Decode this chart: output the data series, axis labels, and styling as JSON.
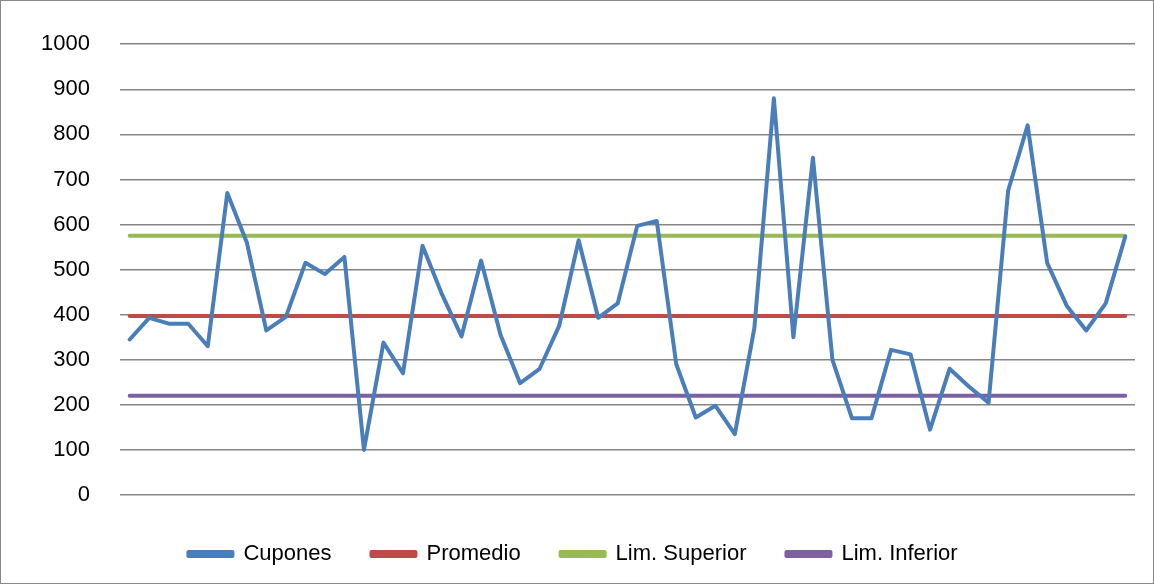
{
  "chart_data": {
    "type": "line",
    "categories": [
      null,
      null,
      null,
      null,
      null,
      null,
      null,
      null,
      null,
      null,
      null,
      null,
      null,
      null,
      null,
      null,
      null,
      null,
      null,
      null,
      null,
      null,
      null,
      null,
      null,
      null,
      null,
      null,
      null,
      null,
      null,
      null,
      null,
      null,
      null,
      null,
      null,
      null,
      null,
      null,
      null,
      null,
      null,
      null,
      null,
      null,
      null,
      null,
      null,
      null,
      null,
      null
    ],
    "series": [
      {
        "name": "Cupones",
        "color": "#4a7ebb",
        "values": [
          345,
          393,
          380,
          380,
          330,
          670,
          560,
          365,
          395,
          515,
          490,
          528,
          100,
          338,
          270,
          553,
          445,
          352,
          520,
          355,
          248,
          280,
          375,
          565,
          393,
          425,
          597,
          608,
          290,
          172,
          198,
          135,
          370,
          880,
          350,
          748,
          300,
          170,
          170,
          322,
          312,
          145,
          280,
          240,
          205,
          675,
          820,
          515,
          420,
          365,
          425,
          573
        ]
      },
      {
        "name": "Promedio",
        "color": "#be4b48",
        "values": [
          397,
          397,
          397,
          397,
          397,
          397,
          397,
          397,
          397,
          397,
          397,
          397,
          397,
          397,
          397,
          397,
          397,
          397,
          397,
          397,
          397,
          397,
          397,
          397,
          397,
          397,
          397,
          397,
          397,
          397,
          397,
          397,
          397,
          397,
          397,
          397,
          397,
          397,
          397,
          397,
          397,
          397,
          397,
          397,
          397,
          397,
          397,
          397,
          397,
          397,
          397,
          397
        ]
      },
      {
        "name": "Lim. Superior",
        "color": "#98b954",
        "values": [
          575,
          575,
          575,
          575,
          575,
          575,
          575,
          575,
          575,
          575,
          575,
          575,
          575,
          575,
          575,
          575,
          575,
          575,
          575,
          575,
          575,
          575,
          575,
          575,
          575,
          575,
          575,
          575,
          575,
          575,
          575,
          575,
          575,
          575,
          575,
          575,
          575,
          575,
          575,
          575,
          575,
          575,
          575,
          575,
          575,
          575,
          575,
          575,
          575,
          575,
          575,
          575
        ]
      },
      {
        "name": "Lim. Inferior",
        "color": "#7d60a0",
        "values": [
          220,
          220,
          220,
          220,
          220,
          220,
          220,
          220,
          220,
          220,
          220,
          220,
          220,
          220,
          220,
          220,
          220,
          220,
          220,
          220,
          220,
          220,
          220,
          220,
          220,
          220,
          220,
          220,
          220,
          220,
          220,
          220,
          220,
          220,
          220,
          220,
          220,
          220,
          220,
          220,
          220,
          220,
          220,
          220,
          220,
          220,
          220,
          220,
          220,
          220,
          220,
          220
        ]
      }
    ],
    "ylim": [
      0,
      1000
    ],
    "yticks": [
      0,
      100,
      200,
      300,
      400,
      500,
      600,
      700,
      800,
      900,
      1000
    ],
    "grid": "y",
    "legend": "bottom",
    "marker": "none",
    "tick_labels": "y"
  }
}
